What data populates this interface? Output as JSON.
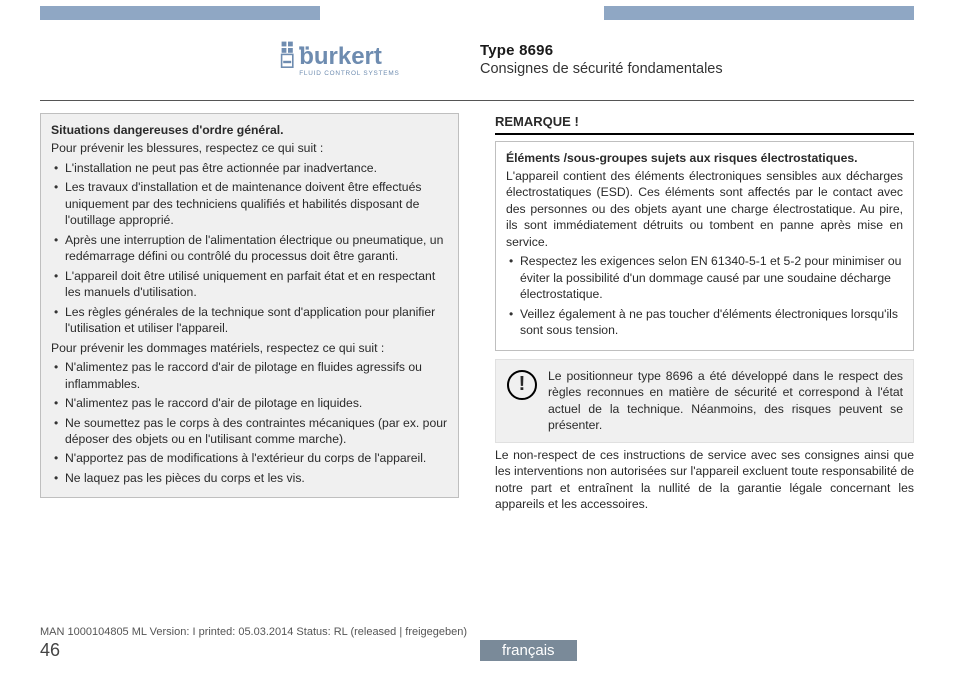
{
  "colors": {
    "header_bar": "#8fa7c4",
    "lang_tab_bg": "#7a8a99",
    "box_gray_bg": "#f0f0f0",
    "border": "#bfbfbf",
    "text": "#1a1a1a"
  },
  "brand": {
    "name": "burkert",
    "tagline": "FLUID CONTROL SYSTEMS",
    "logo_color": "#6e8cb0"
  },
  "header": {
    "type_label": "Type 8696",
    "subtitle": "Consignes de sécurité fondamentales"
  },
  "left": {
    "title": "Situations dangereuses d'ordre général.",
    "intro1": "Pour prévenir les blessures, respectez ce qui suit :",
    "list1": [
      "L'installation ne peut pas être actionnée par inadvertance.",
      "Les travaux d'installation et de maintenance doivent être effectués uniquement par des techniciens qualifiés et habilités disposant de l'outillage approprié.",
      "Après une interruption de l'alimentation électrique ou pneumatique, un redémarrage défini ou contrôlé du processus doit être garanti.",
      "L'appareil doit être utilisé uniquement en parfait état et en respectant les manuels d'utilisation.",
      "Les règles générales de la technique sont d'application pour planifier l'utilisation et utiliser l'appareil."
    ],
    "intro2": "Pour prévenir les dommages matériels, respectez ce qui suit :",
    "list2": [
      "N'alimentez pas le raccord d'air de pilotage en fluides agressifs ou inflammables.",
      "N'alimentez pas le raccord d'air de pilotage en liquides.",
      "Ne soumettez pas le corps à des contraintes mécaniques (par ex. pour déposer des objets ou en l'utilisant comme marche).",
      "N'apportez pas de modifications à l'extérieur du corps de l'appareil.",
      "Ne laquez pas les pièces du corps et les vis."
    ]
  },
  "right": {
    "heading": "REMARQUE !",
    "box_title": "Éléments /sous-groupes sujets aux risques électrostatiques.",
    "box_para": "L'appareil contient des éléments électroniques sensibles aux décharges électrostatiques (ESD). Ces éléments sont affectés par le contact avec des personnes ou des objets ayant une charge électrostatique. Au pire, ils sont immédiatement détruits ou tombent en panne après mise en service.",
    "box_list": [
      "Respectez les exigences selon EN 61340-5-1 et 5-2 pour minimiser ou éviter la possibilité d'un dommage causé par une soudaine décharge électrostatique.",
      "Veillez également à ne pas toucher d'éléments électroniques lorsqu'ils sont sous tension."
    ],
    "notice_text": "Le positionneur type 8696 a été développé dans le respect des règles reconnues en matière de sécurité et correspond à l'état actuel de la technique. Néanmoins, des risques peuvent se présenter.",
    "after_notice": "Le non-respect de ces instructions de service avec ses consignes ainsi que les interventions non autorisées sur l'appareil excluent toute responsabilité de notre part et entraînent la nullité de la garantie légale concernant les appareils et les accessoires."
  },
  "footer": {
    "release_line": "MAN 1000104805 ML Version: I printed: 05.03.2014 Status: RL (released | freigegeben)",
    "page_number": "46",
    "language": "français"
  }
}
